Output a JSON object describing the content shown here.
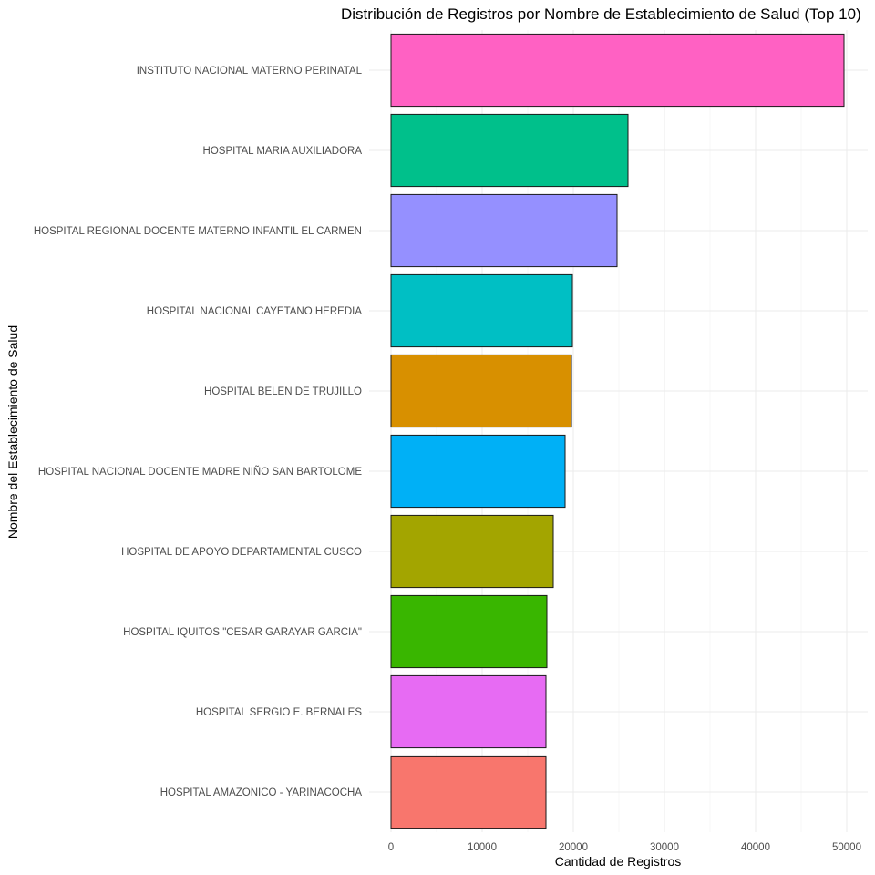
{
  "chart_data": {
    "type": "bar",
    "orientation": "horizontal",
    "title": "Distribución de Registros por Nombre de Establecimiento de Salud (Top 10)",
    "xlabel": "Cantidad de Registros",
    "ylabel": "Nombre del Establecimiento de Salud",
    "xlim": [
      0,
      52000
    ],
    "xticks": [
      0,
      10000,
      20000,
      30000,
      40000,
      50000
    ],
    "xtick_labels": [
      "0",
      "10000",
      "20000",
      "30000",
      "40000",
      "50000"
    ],
    "grid": true,
    "legend": "none",
    "categories": [
      "INSTITUTO NACIONAL MATERNO PERINATAL",
      "HOSPITAL MARIA AUXILIADORA",
      "HOSPITAL REGIONAL DOCENTE MATERNO INFANTIL EL CARMEN",
      "HOSPITAL NACIONAL CAYETANO HEREDIA",
      "HOSPITAL BELEN DE TRUJILLO",
      "HOSPITAL NACIONAL DOCENTE MADRE NIÑO SAN BARTOLOME",
      "HOSPITAL DE APOYO DEPARTAMENTAL CUSCO",
      "HOSPITAL IQUITOS \"CESAR GARAYAR GARCIA\"",
      "HOSPITAL SERGIO E. BERNALES",
      "HOSPITAL AMAZONICO - YARINACOCHA"
    ],
    "values": [
      49700,
      26000,
      24800,
      19900,
      19800,
      19100,
      17800,
      17100,
      17000,
      17000
    ],
    "colors": [
      "#FF61C3",
      "#00C08B",
      "#9590FF",
      "#00BFC4",
      "#D89000",
      "#00B0F6",
      "#A3A500",
      "#39B600",
      "#E76BF3",
      "#F8766D"
    ]
  }
}
